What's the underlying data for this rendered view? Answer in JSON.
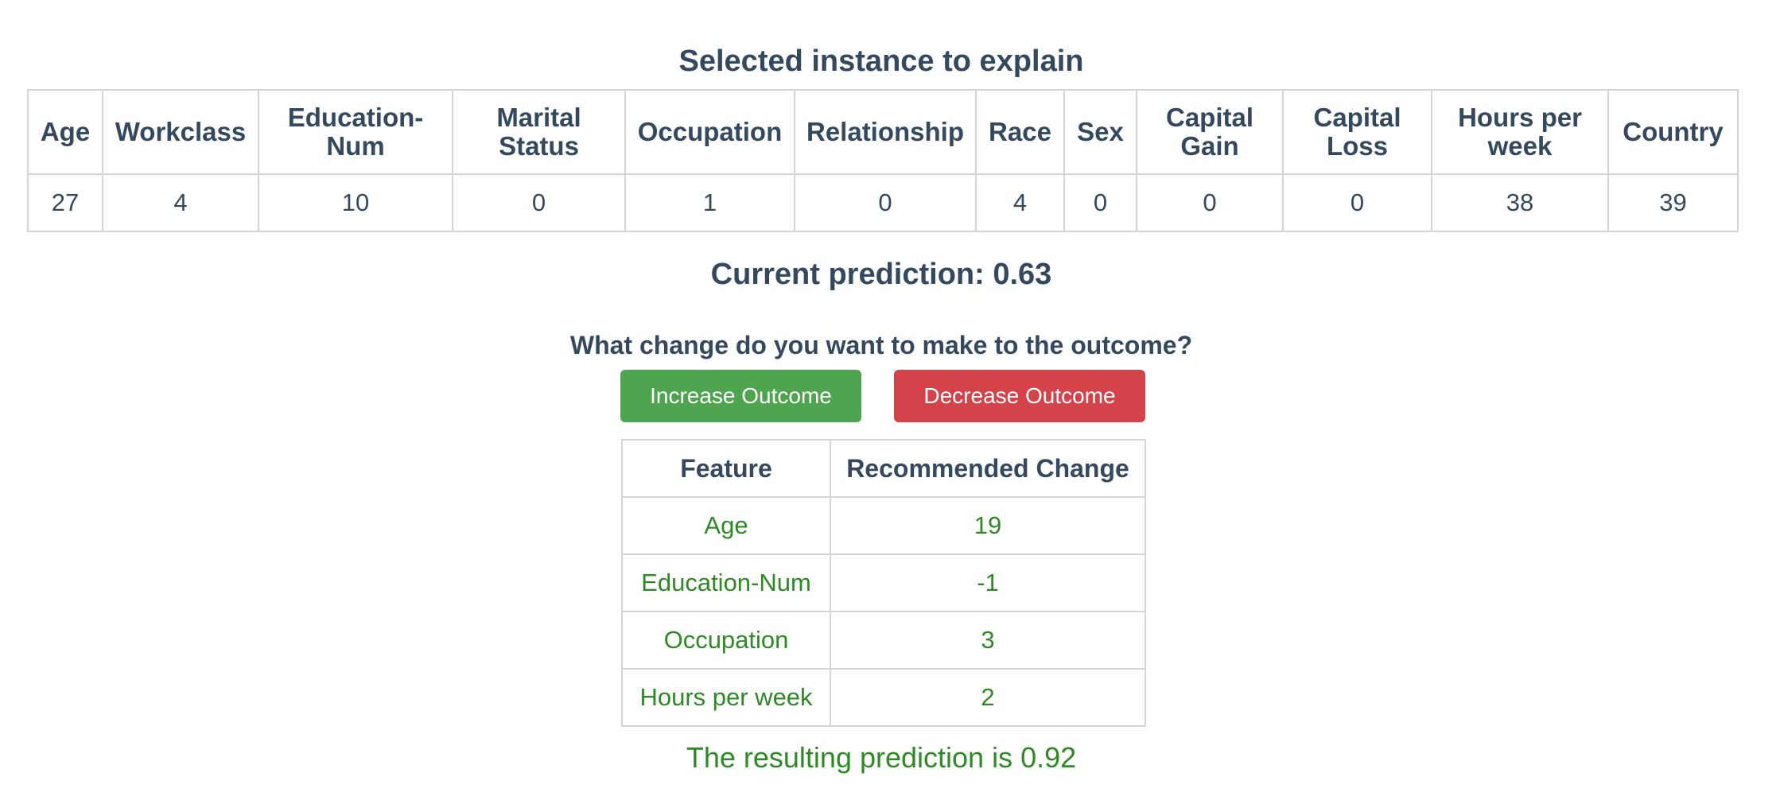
{
  "instance_section": {
    "title": "Selected instance to explain",
    "columns": [
      "Age",
      "Workclass",
      "Education-Num",
      "Marital Status",
      "Occupation",
      "Relationship",
      "Race",
      "Sex",
      "Capital Gain",
      "Capital Loss",
      "Hours per week",
      "Country"
    ],
    "values": [
      "27",
      "4",
      "10",
      "0",
      "1",
      "0",
      "4",
      "0",
      "0",
      "0",
      "38",
      "39"
    ]
  },
  "current_prediction": "Current prediction: 0.63",
  "question": "What change do you want to make to the outcome?",
  "buttons": {
    "increase_label": "Increase Outcome",
    "decrease_label": "Decrease Outcome"
  },
  "change_table": {
    "headers": [
      "Feature",
      "Recommended Change"
    ],
    "rows": [
      {
        "feature": "Age",
        "change": "19"
      },
      {
        "feature": "Education-Num",
        "change": "-1"
      },
      {
        "feature": "Occupation",
        "change": "3"
      },
      {
        "feature": "Hours per week",
        "change": "2"
      }
    ]
  },
  "resulting_prediction": "The resulting prediction is 0.92",
  "colors": {
    "heading_text": "#34495e",
    "increase_button": "#4fa54f",
    "decrease_button": "#d4424a",
    "result_text": "#2e8a24",
    "table_border": "#d5d5d5"
  }
}
